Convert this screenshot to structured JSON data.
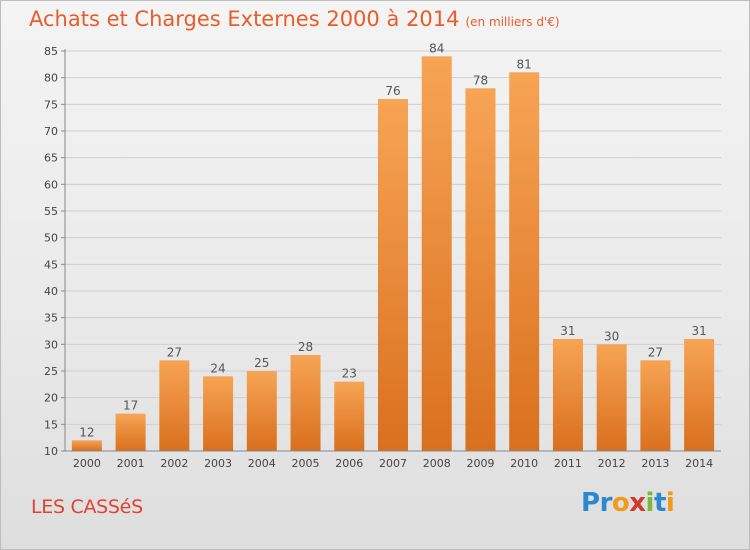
{
  "title": "Achats et Charges Externes 2000 à 2014",
  "title_unit": "(en milliers d'€)",
  "town": "LES CASSéS",
  "logo": {
    "letters": [
      "P",
      "r",
      "o",
      "x",
      "i",
      "t",
      "i"
    ],
    "colors": [
      "#2e88d0",
      "#2e88d0",
      "#f29a1c",
      "#d33a2c",
      "#79b93d",
      "#2e88d0",
      "#f29a1c"
    ]
  },
  "colors": {
    "bar_top": "#f7a455",
    "bar_bottom": "#d9701e",
    "title": "#e85d2a",
    "town": "#e0432f"
  },
  "chart_data": {
    "type": "bar",
    "title": "Achats et Charges Externes 2000 à 2014",
    "xlabel": "",
    "ylabel": "",
    "categories": [
      "2000",
      "2001",
      "2002",
      "2003",
      "2004",
      "2005",
      "2006",
      "2007",
      "2008",
      "2009",
      "2010",
      "2011",
      "2012",
      "2013",
      "2014"
    ],
    "values": [
      12,
      17,
      27,
      24,
      25,
      28,
      23,
      76,
      84,
      78,
      81,
      31,
      30,
      27,
      31
    ],
    "ylim": [
      10,
      85
    ],
    "yticks": [
      10,
      15,
      20,
      25,
      30,
      35,
      40,
      45,
      50,
      55,
      60,
      65,
      70,
      75,
      80,
      85
    ],
    "grid": true
  }
}
